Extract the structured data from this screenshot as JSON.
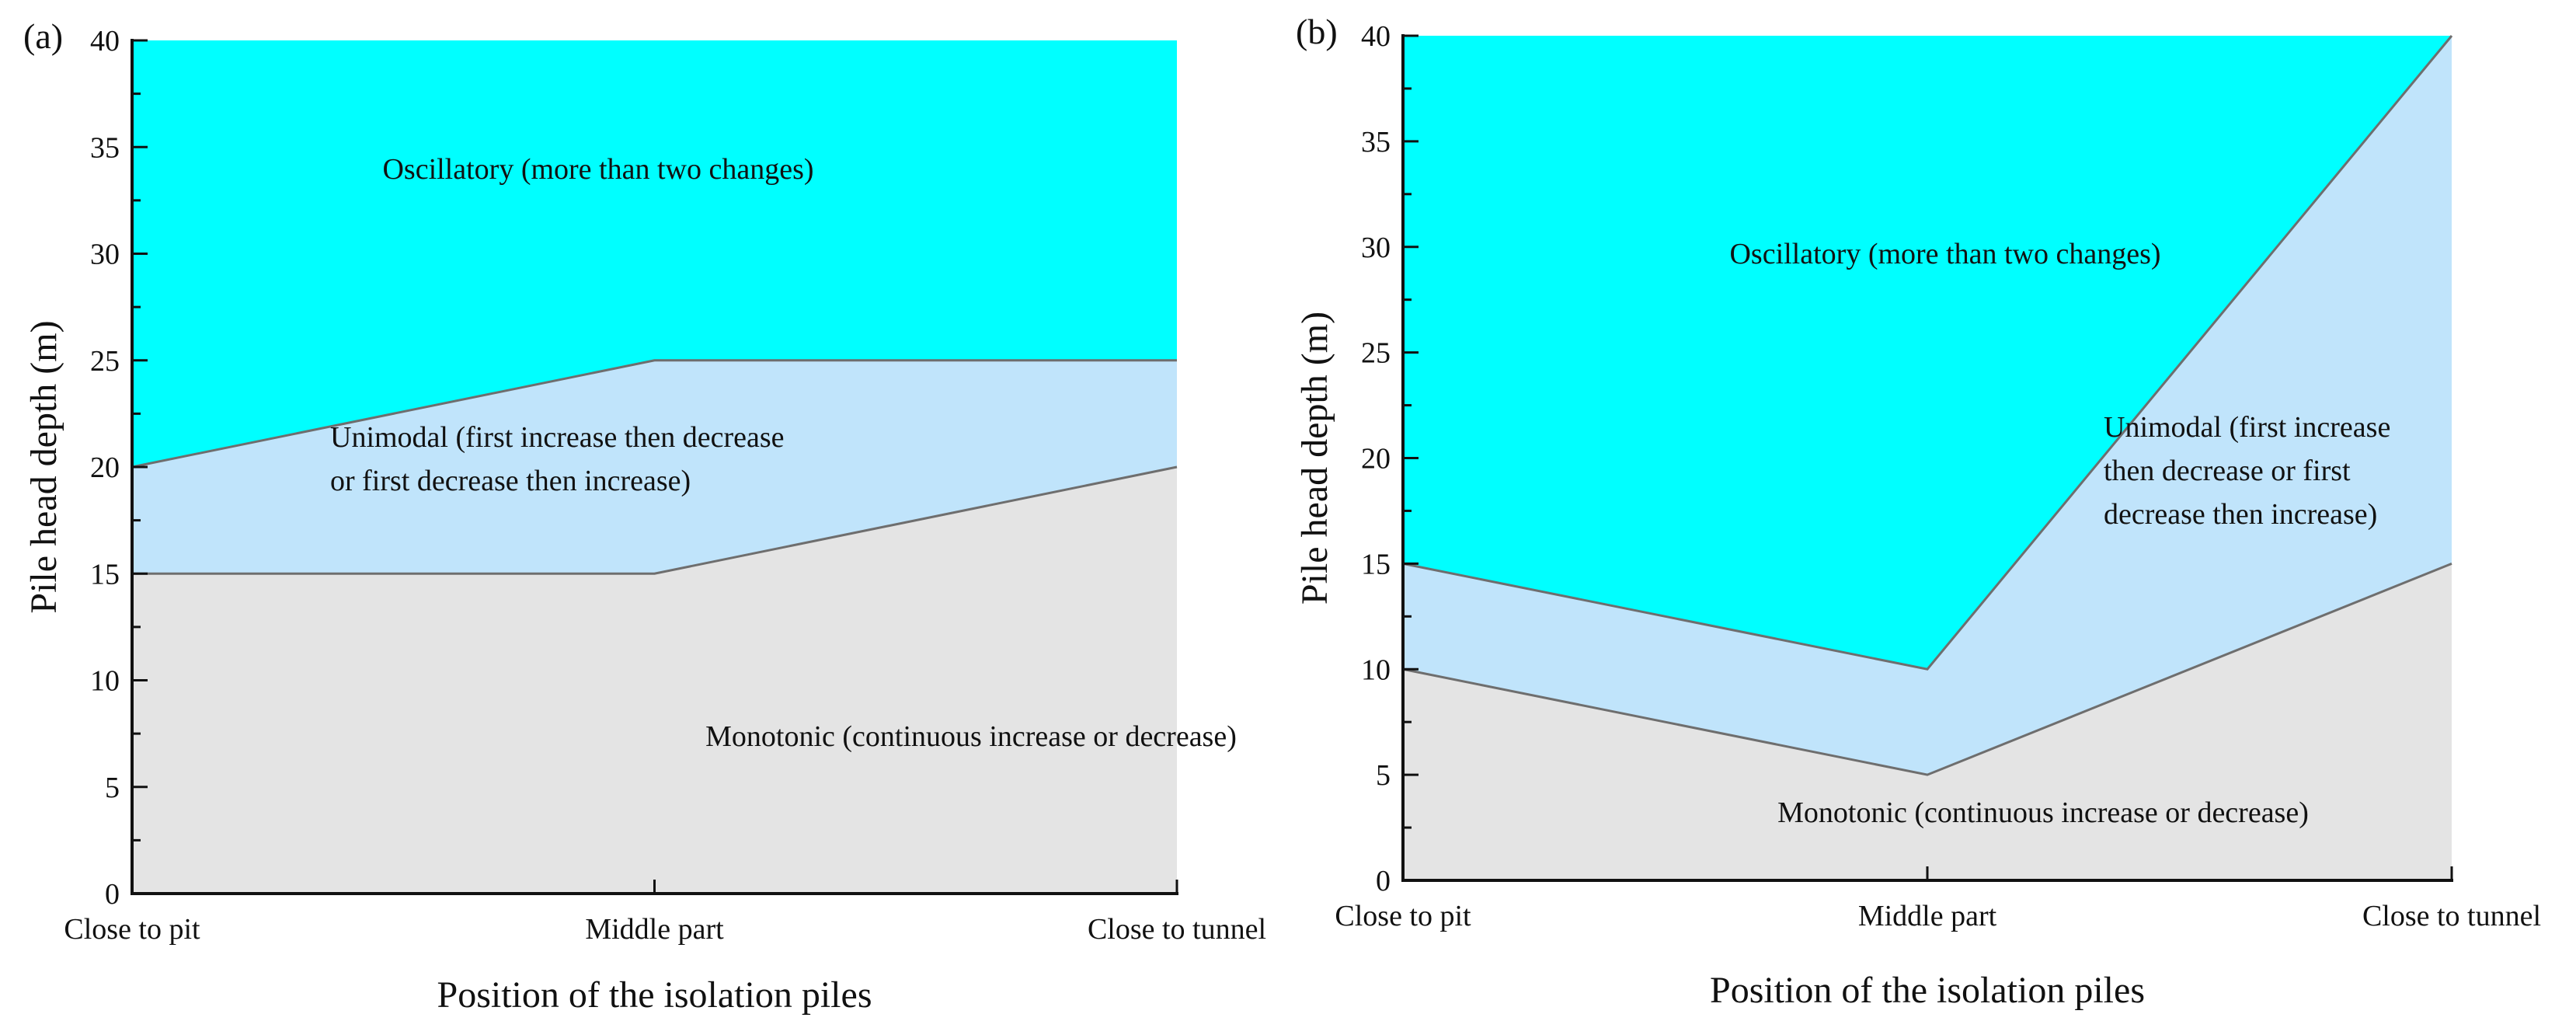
{
  "figure_title": "",
  "chart_data": [
    {
      "panel": "(a)",
      "type": "area",
      "stacked": true,
      "xlabel": "Position of the isolation piles",
      "ylabel": "Pile head depth (m)",
      "categories": [
        "Close to pit",
        "Middle part",
        "Close to tunnel"
      ],
      "ylim": [
        0,
        40
      ],
      "yticks": [
        0,
        5,
        10,
        15,
        20,
        25,
        30,
        35,
        40
      ],
      "boundaries": [
        {
          "name": "monotonic_upper",
          "values": [
            15,
            15,
            20
          ]
        },
        {
          "name": "unimodal_upper",
          "values": [
            20,
            25,
            25
          ]
        },
        {
          "name": "oscillatory_upper",
          "values": [
            40,
            40,
            40
          ]
        }
      ],
      "series": [
        {
          "name": "Monotonic",
          "color": "#e4e4e4",
          "lines": [
            "Monotonic (continuous increase or decrease)"
          ]
        },
        {
          "name": "Unimodal",
          "color": "#c0e4fb",
          "lines": [
            "Unimodal (first increase then decrease",
            "or first decrease then increase)"
          ]
        },
        {
          "name": "Oscillatory",
          "color": "#00ffff",
          "lines": [
            "Oscillatory (more than two changes)"
          ]
        }
      ]
    },
    {
      "panel": "(b)",
      "type": "area",
      "stacked": true,
      "xlabel": "Position of the isolation piles",
      "ylabel": "Pile head depth (m)",
      "categories": [
        "Close to pit",
        "Middle part",
        "Close to tunnel"
      ],
      "ylim": [
        0,
        40
      ],
      "yticks": [
        0,
        5,
        10,
        15,
        20,
        25,
        30,
        35,
        40
      ],
      "boundaries": [
        {
          "name": "monotonic_upper",
          "values": [
            10,
            5,
            15
          ]
        },
        {
          "name": "unimodal_upper",
          "values": [
            15,
            10,
            40
          ]
        },
        {
          "name": "oscillatory_upper",
          "values": [
            40,
            40,
            40
          ]
        }
      ],
      "series": [
        {
          "name": "Monotonic",
          "color": "#e4e4e4",
          "lines": [
            "Monotonic (continuous increase or decrease)"
          ]
        },
        {
          "name": "Unimodal",
          "color": "#c0e4fb",
          "lines": [
            "Unimodal (first increase",
            "then decrease or first",
            "decrease then increase)"
          ]
        },
        {
          "name": "Oscillatory",
          "color": "#00ffff",
          "lines": [
            "Oscillatory (more than two changes)"
          ]
        }
      ]
    }
  ]
}
